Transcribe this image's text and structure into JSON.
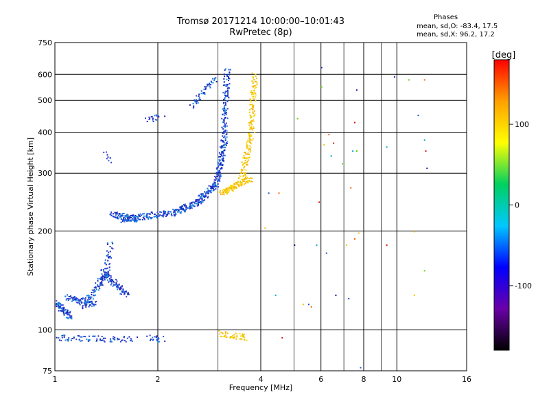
{
  "chart_data": {
    "type": "scatter",
    "title": "Tromsø 20171214 10:00:00–10:01:43",
    "subtitle": "RwPretec (8p)",
    "xlabel": "Frequency [MHz]",
    "ylabel": "Stationary phase Virtual Height [km]",
    "x_scale": "log",
    "y_scale": "log",
    "xlim": [
      1,
      16
    ],
    "ylim": [
      75,
      750
    ],
    "x_ticks": [
      1,
      2,
      4,
      6,
      8,
      10,
      16
    ],
    "y_ticks": [
      75,
      100,
      200,
      300,
      400,
      500,
      600,
      750
    ],
    "grid": true,
    "phase_stats": {
      "title": "Phases",
      "o_line": "mean, sd,O:  -83.4, 17.5",
      "x_line": "mean, sd,X:  96.2, 17.2"
    },
    "colorbar": {
      "label": "[deg]",
      "range": [
        -180,
        180
      ],
      "ticks": [
        100,
        0,
        -100
      ],
      "colors": [
        "#000000",
        "#6a00a8",
        "#0000ff",
        "#00c8ff",
        "#00d060",
        "#ffff00",
        "#ffa000",
        "#ff0000"
      ]
    },
    "series": [
      {
        "name": "O",
        "color": "#1a4fd0",
        "segments": [
          {
            "x": [
              1.0,
              1.1
            ],
            "y": [
              122,
              110
            ],
            "n": 90
          },
          {
            "x": [
              1.08,
              1.3
            ],
            "y": [
              126,
              120
            ],
            "n": 80
          },
          {
            "x": [
              1.2,
              1.42
            ],
            "y": [
              118,
              150
            ],
            "n": 90
          },
          {
            "x": [
              1.38,
              1.62
            ],
            "y": [
              150,
              128
            ],
            "n": 90
          },
          {
            "x": [
              1.4,
              1.45
            ],
            "y": [
              145,
              185
            ],
            "n": 40
          },
          {
            "x": [
              1.46,
              1.75
            ],
            "y": [
              225,
              218
            ],
            "n": 90
          },
          {
            "x": [
              1.55,
              2.2
            ],
            "y": [
              218,
              228
            ],
            "n": 120
          },
          {
            "x": [
              2.2,
              2.6
            ],
            "y": [
              228,
              245
            ],
            "n": 90
          },
          {
            "x": [
              2.6,
              2.95
            ],
            "y": [
              245,
              280
            ],
            "n": 100
          },
          {
            "x": [
              2.95,
              3.12
            ],
            "y": [
              280,
              380
            ],
            "n": 120
          },
          {
            "x": [
              3.1,
              3.18
            ],
            "y": [
              380,
              620
            ],
            "n": 120
          },
          {
            "x": [
              2.5,
              2.95
            ],
            "y": [
              480,
              590
            ],
            "n": 50
          },
          {
            "x": [
              1.85,
              2.05
            ],
            "y": [
              440,
              450
            ],
            "n": 20
          },
          {
            "x": [
              1.0,
              1.7
            ],
            "y": [
              95,
              94
            ],
            "n": 80
          },
          {
            "x": [
              1.88,
              2.05
            ],
            "y": [
              95,
              94
            ],
            "n": 20
          },
          {
            "x": [
              1.4,
              1.45
            ],
            "y": [
              345,
              330
            ],
            "n": 8
          }
        ]
      },
      {
        "name": "X",
        "color": "#f0c400",
        "segments": [
          {
            "x": [
              3.05,
              3.7
            ],
            "y": [
              262,
              290
            ],
            "n": 130
          },
          {
            "x": [
              3.5,
              3.78
            ],
            "y": [
              290,
              420
            ],
            "n": 100
          },
          {
            "x": [
              3.74,
              3.82
            ],
            "y": [
              420,
              600
            ],
            "n": 80
          },
          {
            "x": [
              3.0,
              3.4
            ],
            "y": [
              98,
              96
            ],
            "n": 30
          },
          {
            "x": [
              3.4,
              3.6
            ],
            "y": [
              96,
              95
            ],
            "n": 20
          }
        ]
      }
    ],
    "sparse_points": [
      {
        "x": 4.1,
        "y": 205
      },
      {
        "x": 4.2,
        "y": 262
      },
      {
        "x": 4.5,
        "y": 262
      },
      {
        "x": 4.4,
        "y": 128
      },
      {
        "x": 4.6,
        "y": 95
      },
      {
        "x": 5.0,
        "y": 182
      },
      {
        "x": 5.1,
        "y": 442
      },
      {
        "x": 5.3,
        "y": 120
      },
      {
        "x": 5.5,
        "y": 120
      },
      {
        "x": 5.6,
        "y": 118
      },
      {
        "x": 5.8,
        "y": 182
      },
      {
        "x": 5.9,
        "y": 246
      },
      {
        "x": 6.0,
        "y": 632
      },
      {
        "x": 6.0,
        "y": 552
      },
      {
        "x": 6.1,
        "y": 368
      },
      {
        "x": 6.2,
        "y": 172
      },
      {
        "x": 6.3,
        "y": 395
      },
      {
        "x": 6.4,
        "y": 340
      },
      {
        "x": 6.5,
        "y": 372
      },
      {
        "x": 6.6,
        "y": 128
      },
      {
        "x": 6.9,
        "y": 322
      },
      {
        "x": 7.1,
        "y": 182
      },
      {
        "x": 7.2,
        "y": 125
      },
      {
        "x": 7.3,
        "y": 272
      },
      {
        "x": 7.4,
        "y": 352
      },
      {
        "x": 7.5,
        "y": 430
      },
      {
        "x": 7.6,
        "y": 540
      },
      {
        "x": 7.6,
        "y": 352
      },
      {
        "x": 7.7,
        "y": 198
      },
      {
        "x": 7.8,
        "y": 77
      },
      {
        "x": 7.5,
        "y": 190
      },
      {
        "x": 9.3,
        "y": 362
      },
      {
        "x": 9.3,
        "y": 182
      },
      {
        "x": 9.8,
        "y": 592
      },
      {
        "x": 10.8,
        "y": 580
      },
      {
        "x": 11.2,
        "y": 200
      },
      {
        "x": 11.5,
        "y": 452
      },
      {
        "x": 12.0,
        "y": 580
      },
      {
        "x": 12.0,
        "y": 380
      },
      {
        "x": 12.1,
        "y": 352
      },
      {
        "x": 12.2,
        "y": 312
      },
      {
        "x": 12.0,
        "y": 152
      },
      {
        "x": 11.2,
        "y": 128
      }
    ]
  }
}
